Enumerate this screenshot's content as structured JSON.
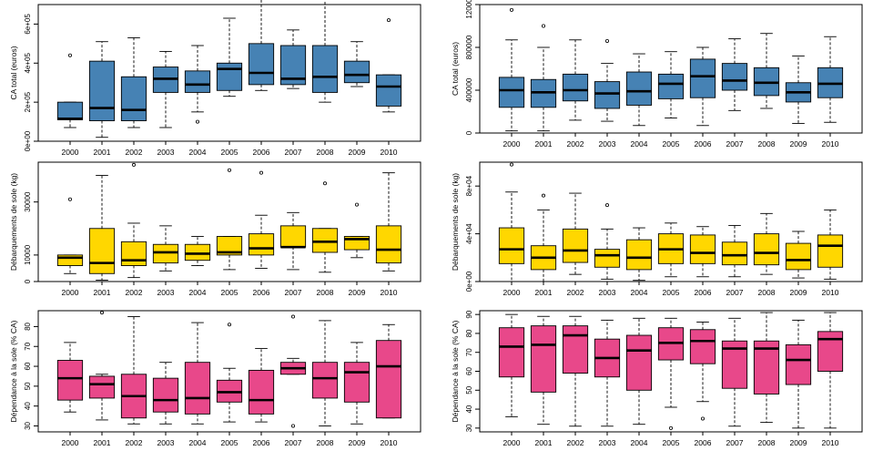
{
  "x_categories": [
    "2000",
    "2001",
    "2002",
    "2003",
    "2004",
    "2005",
    "2006",
    "2007",
    "2008",
    "2009",
    "2010"
  ],
  "colors": {
    "blue": "#4682b4",
    "yellow": "#ffd700",
    "pink": "#e8488a",
    "axis": "#000000"
  },
  "chart_data": [
    {
      "type": "boxplot",
      "position": "top-left",
      "ylabel": "CA total (euros)",
      "fill": "#4682b4",
      "ylim": [
        0,
        700000
      ],
      "yticks": [
        0,
        200000,
        400000,
        600000
      ],
      "ytick_labels": [
        "0e+00",
        "2e+05",
        "4e+05",
        "6e+05"
      ],
      "boxes": [
        {
          "min": 70000,
          "q1": 110000,
          "median": 115000,
          "q3": 200000,
          "max": 200000,
          "outliers": [
            440000
          ]
        },
        {
          "min": 20000,
          "q1": 105000,
          "median": 170000,
          "q3": 410000,
          "max": 510000,
          "outliers": []
        },
        {
          "min": 70000,
          "q1": 105000,
          "median": 160000,
          "q3": 330000,
          "max": 530000,
          "outliers": []
        },
        {
          "min": 70000,
          "q1": 250000,
          "median": 320000,
          "q3": 380000,
          "max": 460000,
          "outliers": []
        },
        {
          "min": 150000,
          "q1": 250000,
          "median": 290000,
          "q3": 360000,
          "max": 490000,
          "outliers": [
            100000
          ]
        },
        {
          "min": 230000,
          "q1": 260000,
          "median": 370000,
          "q3": 400000,
          "max": 630000,
          "outliers": []
        },
        {
          "min": 260000,
          "q1": 290000,
          "median": 350000,
          "q3": 500000,
          "max": 740000,
          "outliers": []
        },
        {
          "min": 270000,
          "q1": 290000,
          "median": 320000,
          "q3": 490000,
          "max": 570000,
          "outliers": []
        },
        {
          "min": 200000,
          "q1": 250000,
          "median": 330000,
          "q3": 490000,
          "max": 730000,
          "outliers": []
        },
        {
          "min": 280000,
          "q1": 300000,
          "median": 340000,
          "q3": 410000,
          "max": 510000,
          "outliers": []
        },
        {
          "min": 150000,
          "q1": 180000,
          "median": 280000,
          "q3": 340000,
          "max": 340000,
          "outliers": [
            620000
          ]
        }
      ]
    },
    {
      "type": "boxplot",
      "position": "top-right",
      "ylabel": "CA total (euros)",
      "fill": "#4682b4",
      "ylim": [
        0,
        1200000
      ],
      "yticks": [
        0,
        400000,
        800000,
        1200000
      ],
      "ytick_labels": [
        "0",
        "400000",
        "800000",
        "1200000"
      ],
      "boxes": [
        {
          "min": 20000,
          "q1": 240000,
          "median": 400000,
          "q3": 520000,
          "max": 870000,
          "outliers": [
            1150000
          ]
        },
        {
          "min": 20000,
          "q1": 240000,
          "median": 380000,
          "q3": 500000,
          "max": 800000,
          "outliers": [
            1000000
          ]
        },
        {
          "min": 120000,
          "q1": 300000,
          "median": 400000,
          "q3": 550000,
          "max": 870000,
          "outliers": []
        },
        {
          "min": 110000,
          "q1": 230000,
          "median": 370000,
          "q3": 480000,
          "max": 650000,
          "outliers": [
            860000
          ]
        },
        {
          "min": 70000,
          "q1": 260000,
          "median": 390000,
          "q3": 570000,
          "max": 740000,
          "outliers": []
        },
        {
          "min": 140000,
          "q1": 320000,
          "median": 460000,
          "q3": 550000,
          "max": 760000,
          "outliers": []
        },
        {
          "min": 70000,
          "q1": 330000,
          "median": 530000,
          "q3": 690000,
          "max": 800000,
          "outliers": []
        },
        {
          "min": 210000,
          "q1": 400000,
          "median": 490000,
          "q3": 650000,
          "max": 880000,
          "outliers": []
        },
        {
          "min": 230000,
          "q1": 350000,
          "median": 470000,
          "q3": 610000,
          "max": 930000,
          "outliers": []
        },
        {
          "min": 90000,
          "q1": 290000,
          "median": 380000,
          "q3": 470000,
          "max": 720000,
          "outliers": []
        },
        {
          "min": 100000,
          "q1": 330000,
          "median": 460000,
          "q3": 610000,
          "max": 900000,
          "outliers": []
        }
      ]
    },
    {
      "type": "boxplot",
      "position": "middle-left",
      "ylabel": "Débarquements de sole (kg)",
      "fill": "#ffd700",
      "ylim": [
        0,
        45000
      ],
      "yticks": [
        0,
        10000,
        30000
      ],
      "ytick_labels": [
        "0",
        "10000",
        "30000"
      ],
      "boxes": [
        {
          "min": 3000,
          "q1": 6000,
          "median": 9000,
          "q3": 10000,
          "max": 10000,
          "outliers": [
            31000
          ]
        },
        {
          "min": 500,
          "q1": 3000,
          "median": 7000,
          "q3": 20000,
          "max": 40000,
          "outliers": []
        },
        {
          "min": 1500,
          "q1": 6000,
          "median": 8000,
          "q3": 15000,
          "max": 22000,
          "outliers": [
            44000
          ]
        },
        {
          "min": 4000,
          "q1": 7000,
          "median": 11000,
          "q3": 14000,
          "max": 21000,
          "outliers": []
        },
        {
          "min": 6000,
          "q1": 8000,
          "median": 10500,
          "q3": 14000,
          "max": 17000,
          "outliers": []
        },
        {
          "min": 4500,
          "q1": 10000,
          "median": 11000,
          "q3": 17000,
          "max": 17000,
          "outliers": [
            42000
          ]
        },
        {
          "min": 5000,
          "q1": 10000,
          "median": 12500,
          "q3": 18000,
          "max": 25000,
          "outliers": [
            41000
          ]
        },
        {
          "min": 4500,
          "q1": 13000,
          "median": 13000,
          "q3": 21000,
          "max": 26000,
          "outliers": []
        },
        {
          "min": 3500,
          "q1": 11000,
          "median": 15000,
          "q3": 20000,
          "max": 20000,
          "outliers": [
            37000
          ]
        },
        {
          "min": 9000,
          "q1": 12000,
          "median": 16000,
          "q3": 17000,
          "max": 17000,
          "outliers": [
            29000
          ]
        },
        {
          "min": 4000,
          "q1": 7000,
          "median": 12000,
          "q3": 21000,
          "max": 41000,
          "outliers": []
        }
      ]
    },
    {
      "type": "boxplot",
      "position": "middle-right",
      "ylabel": "Débarquements de sole (kg)",
      "fill": "#ffd700",
      "ylim": [
        0,
        100000
      ],
      "yticks": [
        0,
        40000,
        80000
      ],
      "ytick_labels": [
        "0e+00",
        "4e+04",
        "8e+04"
      ],
      "boxes": [
        {
          "min": 0,
          "q1": 15000,
          "median": 27000,
          "q3": 45000,
          "max": 75000,
          "outliers": [
            98000
          ]
        },
        {
          "min": 0,
          "q1": 10000,
          "median": 20000,
          "q3": 30000,
          "max": 60000,
          "outliers": [
            72000
          ]
        },
        {
          "min": 6000,
          "q1": 16000,
          "median": 26000,
          "q3": 44000,
          "max": 74000,
          "outliers": []
        },
        {
          "min": 2000,
          "q1": 12000,
          "median": 22000,
          "q3": 27000,
          "max": 44000,
          "outliers": [
            64000
          ]
        },
        {
          "min": 1000,
          "q1": 10000,
          "median": 20000,
          "q3": 35000,
          "max": 45000,
          "outliers": []
        },
        {
          "min": 4000,
          "q1": 15000,
          "median": 27000,
          "q3": 40000,
          "max": 49000,
          "outliers": []
        },
        {
          "min": 4000,
          "q1": 15000,
          "median": 24000,
          "q3": 39000,
          "max": 46000,
          "outliers": []
        },
        {
          "min": 4000,
          "q1": 14000,
          "median": 22000,
          "q3": 33000,
          "max": 47000,
          "outliers": []
        },
        {
          "min": 6000,
          "q1": 14000,
          "median": 24000,
          "q3": 40000,
          "max": 57000,
          "outliers": []
        },
        {
          "min": 3000,
          "q1": 10000,
          "median": 18000,
          "q3": 32000,
          "max": 42000,
          "outliers": []
        },
        {
          "min": 2000,
          "q1": 12000,
          "median": 30000,
          "q3": 39000,
          "max": 60000,
          "outliers": []
        }
      ]
    },
    {
      "type": "boxplot",
      "position": "bottom-left",
      "ylabel": "Dépendance à la sole (% CA)",
      "fill": "#e8488a",
      "ylim": [
        27,
        88
      ],
      "yticks": [
        30,
        40,
        50,
        60,
        70,
        80
      ],
      "ytick_labels": [
        "30",
        "40",
        "50",
        "60",
        "70",
        "80"
      ],
      "boxes": [
        {
          "min": 37,
          "q1": 43,
          "median": 54,
          "q3": 63,
          "max": 72,
          "outliers": []
        },
        {
          "min": 33,
          "q1": 44,
          "median": 51,
          "q3": 55,
          "max": 56,
          "outliers": [
            87
          ]
        },
        {
          "min": 31,
          "q1": 34,
          "median": 45,
          "q3": 56,
          "max": 85,
          "outliers": []
        },
        {
          "min": 31,
          "q1": 37,
          "median": 43,
          "q3": 54,
          "max": 62,
          "outliers": []
        },
        {
          "min": 31,
          "q1": 36,
          "median": 44,
          "q3": 62,
          "max": 82,
          "outliers": []
        },
        {
          "min": 32,
          "q1": 42,
          "median": 47,
          "q3": 53,
          "max": 59,
          "outliers": [
            81
          ]
        },
        {
          "min": 32,
          "q1": 36,
          "median": 43,
          "q3": 58,
          "max": 69,
          "outliers": []
        },
        {
          "min": 56,
          "q1": 56,
          "median": 59,
          "q3": 62,
          "max": 64,
          "outliers": [
            85,
            30
          ]
        },
        {
          "min": 30,
          "q1": 44,
          "median": 54,
          "q3": 62,
          "max": 83,
          "outliers": []
        },
        {
          "min": 31,
          "q1": 42,
          "median": 57,
          "q3": 62,
          "max": 72,
          "outliers": []
        },
        {
          "min": 34,
          "q1": 34,
          "median": 60,
          "q3": 73,
          "max": 81,
          "outliers": []
        }
      ]
    },
    {
      "type": "boxplot",
      "position": "bottom-right",
      "ylabel": "Dépendance à la sole (% CA)",
      "fill": "#e8488a",
      "ylim": [
        28,
        92
      ],
      "yticks": [
        30,
        40,
        50,
        60,
        70,
        80,
        90
      ],
      "ytick_labels": [
        "30",
        "40",
        "50",
        "60",
        "70",
        "80",
        "90"
      ],
      "boxes": [
        {
          "min": 36,
          "q1": 57,
          "median": 73,
          "q3": 83,
          "max": 90,
          "outliers": []
        },
        {
          "min": 32,
          "q1": 49,
          "median": 74,
          "q3": 84,
          "max": 89,
          "outliers": []
        },
        {
          "min": 31,
          "q1": 59,
          "median": 79,
          "q3": 84,
          "max": 89,
          "outliers": []
        },
        {
          "min": 31,
          "q1": 57,
          "median": 67,
          "q3": 77,
          "max": 87,
          "outliers": []
        },
        {
          "min": 32,
          "q1": 50,
          "median": 71,
          "q3": 79,
          "max": 88,
          "outliers": []
        },
        {
          "min": 41,
          "q1": 66,
          "median": 75,
          "q3": 83,
          "max": 88,
          "outliers": [
            30
          ]
        },
        {
          "min": 44,
          "q1": 64,
          "median": 76,
          "q3": 82,
          "max": 86,
          "outliers": [
            35
          ]
        },
        {
          "min": 31,
          "q1": 51,
          "median": 72,
          "q3": 76,
          "max": 88,
          "outliers": []
        },
        {
          "min": 33,
          "q1": 48,
          "median": 72,
          "q3": 76,
          "max": 91,
          "outliers": []
        },
        {
          "min": 30,
          "q1": 53,
          "median": 66,
          "q3": 74,
          "max": 87,
          "outliers": []
        },
        {
          "min": 30,
          "q1": 60,
          "median": 77,
          "q3": 81,
          "max": 91,
          "outliers": []
        }
      ]
    }
  ]
}
